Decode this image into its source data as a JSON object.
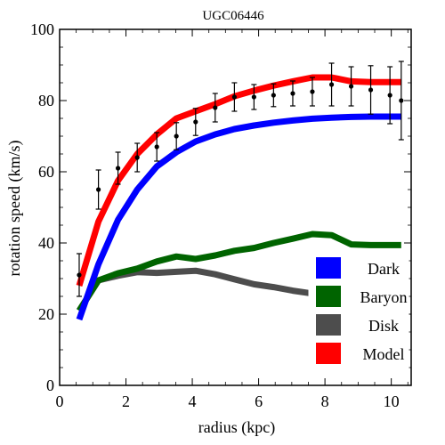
{
  "chart_data": {
    "type": "line",
    "title": "UGC06446",
    "xlabel": "radius (kpc)",
    "ylabel": "rotation speed (km/s)",
    "xlim": [
      0,
      10.6
    ],
    "ylim": [
      0,
      100
    ],
    "xticks": [
      0,
      2,
      4,
      6,
      8,
      10
    ],
    "yticks": [
      0,
      20,
      40,
      60,
      80,
      100
    ],
    "legend_position": "bottom-right",
    "series": [
      {
        "name": "Dark",
        "color": "#0000ff",
        "x": [
          0.59,
          1.17,
          1.76,
          2.34,
          2.93,
          3.52,
          4.1,
          4.69,
          5.27,
          5.86,
          6.45,
          7.03,
          7.62,
          8.2,
          8.79,
          9.38,
          9.96,
          10.3
        ],
        "y": [
          18.5,
          34,
          46.5,
          55,
          61.5,
          65.5,
          68.5,
          70.5,
          72,
          73,
          73.8,
          74.4,
          74.9,
          75.2,
          75.4,
          75.5,
          75.5,
          75.5
        ]
      },
      {
        "name": "Baryon",
        "color": "#006400",
        "x": [
          0.59,
          1.17,
          1.76,
          2.34,
          2.93,
          3.52,
          4.1,
          4.69,
          5.27,
          5.86,
          6.45,
          7.03,
          7.62,
          8.2,
          8.79,
          9.38,
          9.96,
          10.3
        ],
        "y": [
          21,
          29.5,
          31.5,
          32.8,
          34.8,
          36.2,
          35.5,
          36.5,
          37.8,
          38.6,
          40,
          41.2,
          42.5,
          42.2,
          39.6,
          39.4,
          39.4,
          39.4
        ]
      },
      {
        "name": "Disk",
        "color": "#4d4d4d",
        "x": [
          0.59,
          1.17,
          1.76,
          2.34,
          2.93,
          3.52,
          4.1,
          4.69,
          5.27,
          5.86,
          6.45,
          7.03,
          7.62,
          8.2,
          8.79,
          9.38,
          9.96,
          10.3
        ],
        "y": [
          21,
          29.5,
          30.8,
          31.8,
          31.6,
          31.9,
          32.2,
          31.2,
          29.8,
          28.4,
          27.6,
          26.6,
          25.8,
          25,
          24.2,
          23.3,
          22.5,
          22.1
        ]
      },
      {
        "name": "Model",
        "color": "#ff0000",
        "x": [
          0.59,
          1.17,
          1.76,
          2.34,
          2.93,
          3.52,
          4.1,
          4.69,
          5.27,
          5.86,
          6.45,
          7.03,
          7.62,
          8.2,
          8.79,
          9.38,
          9.96,
          10.3
        ],
        "y": [
          28,
          46,
          57.5,
          65,
          70.5,
          75,
          77,
          79,
          81.2,
          82.8,
          84.2,
          85.4,
          86.5,
          86.5,
          85.4,
          85.2,
          85.2,
          85.2
        ]
      }
    ],
    "observations": {
      "x": [
        0.59,
        1.17,
        1.76,
        2.34,
        2.93,
        3.52,
        4.1,
        4.69,
        5.27,
        5.86,
        6.45,
        7.03,
        7.62,
        8.2,
        8.79,
        9.38,
        9.96,
        10.3
      ],
      "y": [
        31,
        55,
        61,
        64,
        67,
        70,
        74,
        78,
        81,
        81,
        81.5,
        82,
        82.5,
        84.5,
        84,
        83,
        81.5,
        80
      ],
      "err": [
        6,
        5.5,
        4.5,
        4,
        4,
        3.8,
        3.8,
        4,
        4,
        3.5,
        3.2,
        3.5,
        4,
        6,
        5.5,
        6.8,
        8,
        11
      ]
    }
  }
}
